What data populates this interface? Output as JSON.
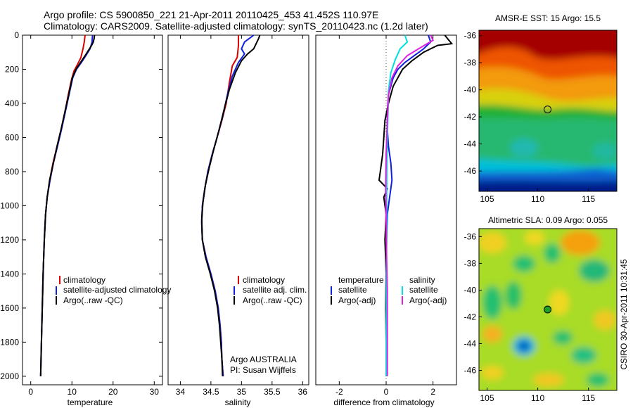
{
  "header": {
    "line1": "Argo profile: CS 5900850_221 21-Apr-2011 20110425_453 41.452S 110.97E",
    "line2": "Climatology: CARS2009. Satellite-adjusted climatology: synTS_20110423.nc (1.2d later)"
  },
  "colors": {
    "climatology": "#dd0000",
    "satellite": "#1020e0",
    "argo": "#000000",
    "sal_satellite": "#00e0e0",
    "sal_argo": "#e020e0",
    "zero_line": "#444444"
  },
  "depth_axis": {
    "ylim": [
      2050,
      0
    ],
    "ticks": [
      0,
      200,
      400,
      600,
      800,
      1000,
      1200,
      1400,
      1600,
      1800,
      2000
    ]
  },
  "chart_data": [
    {
      "id": "temperature",
      "type": "line",
      "xlabel": "temperature",
      "xlim": [
        -2,
        32
      ],
      "xticks": [
        0,
        10,
        20,
        30
      ],
      "legend_labels": [
        "climatology",
        "satellite-adjusted climatology",
        "Argo(..raw -QC)"
      ],
      "series": [
        {
          "name": "climatology",
          "color_key": "climatology",
          "points": [
            [
              13.2,
              0
            ],
            [
              13.0,
              40
            ],
            [
              12.7,
              80
            ],
            [
              12.2,
              130
            ],
            [
              11.4,
              170
            ],
            [
              10.5,
              210
            ],
            [
              9.9,
              260
            ],
            [
              9.1,
              350
            ],
            [
              8.3,
              450
            ],
            [
              7.4,
              550
            ],
            [
              6.4,
              650
            ],
            [
              5.4,
              750
            ],
            [
              4.6,
              850
            ],
            [
              4.0,
              950
            ],
            [
              3.6,
              1050
            ],
            [
              3.3,
              1200
            ],
            [
              3.0,
              1400
            ],
            [
              2.8,
              1600
            ],
            [
              2.6,
              1800
            ],
            [
              2.4,
              2000
            ]
          ]
        },
        {
          "name": "satellite-adjusted climatology",
          "color_key": "satellite",
          "points": [
            [
              15.0,
              0
            ],
            [
              14.9,
              40
            ],
            [
              14.4,
              80
            ],
            [
              13.4,
              120
            ],
            [
              12.3,
              160
            ],
            [
              11.1,
              200
            ],
            [
              10.2,
              250
            ],
            [
              9.3,
              350
            ],
            [
              8.4,
              450
            ],
            [
              7.5,
              550
            ],
            [
              6.5,
              650
            ],
            [
              5.5,
              750
            ],
            [
              4.7,
              850
            ],
            [
              4.0,
              950
            ],
            [
              3.6,
              1050
            ],
            [
              3.3,
              1200
            ],
            [
              3.0,
              1400
            ],
            [
              2.8,
              1600
            ],
            [
              2.6,
              1800
            ],
            [
              2.4,
              2000
            ]
          ]
        },
        {
          "name": "Argo(..raw -QC)",
          "color_key": "argo",
          "points": [
            [
              15.5,
              0
            ],
            [
              15.4,
              20
            ],
            [
              15.2,
              40
            ],
            [
              14.8,
              60
            ],
            [
              14.0,
              90
            ],
            [
              13.2,
              120
            ],
            [
              12.1,
              160
            ],
            [
              11.0,
              200
            ],
            [
              10.1,
              250
            ],
            [
              9.2,
              350
            ],
            [
              8.3,
              450
            ],
            [
              7.4,
              550
            ],
            [
              6.4,
              650
            ],
            [
              5.5,
              750
            ],
            [
              4.6,
              850
            ],
            [
              4.0,
              950
            ],
            [
              3.6,
              1050
            ],
            [
              3.3,
              1200
            ],
            [
              3.0,
              1400
            ],
            [
              2.8,
              1600
            ],
            [
              2.6,
              1800
            ],
            [
              2.4,
              2000
            ]
          ]
        }
      ]
    },
    {
      "id": "salinity",
      "type": "line",
      "xlabel": "salinity",
      "xlim": [
        33.8,
        36.1
      ],
      "xticks": [
        34,
        34.5,
        35,
        35.5,
        36
      ],
      "legend_labels": [
        "climatology",
        "satellite adj. clim.",
        "Argo(..raw -QC)"
      ],
      "series": [
        {
          "name": "climatology",
          "color_key": "climatology",
          "points": [
            [
              34.95,
              0
            ],
            [
              34.95,
              60
            ],
            [
              34.93,
              130
            ],
            [
              34.85,
              180
            ],
            [
              34.8,
              280
            ],
            [
              34.75,
              400
            ],
            [
              34.68,
              500
            ],
            [
              34.6,
              600
            ],
            [
              34.52,
              700
            ],
            [
              34.45,
              800
            ],
            [
              34.4,
              900
            ],
            [
              34.36,
              1000
            ],
            [
              34.35,
              1100
            ],
            [
              34.36,
              1200
            ],
            [
              34.42,
              1300
            ],
            [
              34.5,
              1400
            ],
            [
              34.57,
              1500
            ],
            [
              34.62,
              1600
            ],
            [
              34.65,
              1700
            ],
            [
              34.67,
              1800
            ],
            [
              34.68,
              1900
            ],
            [
              34.7,
              2000
            ]
          ]
        },
        {
          "name": "satellite adj. clim.",
          "color_key": "satellite",
          "points": [
            [
              35.2,
              0
            ],
            [
              35.05,
              40
            ],
            [
              35.0,
              80
            ],
            [
              35.05,
              110
            ],
            [
              34.95,
              160
            ],
            [
              34.85,
              240
            ],
            [
              34.77,
              350
            ],
            [
              34.69,
              480
            ],
            [
              34.6,
              600
            ],
            [
              34.52,
              700
            ],
            [
              34.45,
              800
            ],
            [
              34.4,
              900
            ],
            [
              34.36,
              1000
            ],
            [
              34.35,
              1100
            ],
            [
              34.36,
              1200
            ],
            [
              34.42,
              1300
            ],
            [
              34.5,
              1400
            ],
            [
              34.57,
              1500
            ],
            [
              34.62,
              1600
            ],
            [
              34.65,
              1700
            ],
            [
              34.67,
              1800
            ],
            [
              34.68,
              1900
            ],
            [
              34.7,
              2000
            ]
          ]
        },
        {
          "name": "Argo(..raw -QC)",
          "color_key": "argo",
          "points": [
            [
              35.3,
              0
            ],
            [
              35.28,
              20
            ],
            [
              35.24,
              50
            ],
            [
              35.2,
              80
            ],
            [
              35.1,
              110
            ],
            [
              35.0,
              150
            ],
            [
              34.9,
              220
            ],
            [
              34.8,
              320
            ],
            [
              34.72,
              430
            ],
            [
              34.63,
              560
            ],
            [
              34.54,
              680
            ],
            [
              34.47,
              780
            ],
            [
              34.41,
              880
            ],
            [
              34.37,
              980
            ],
            [
              34.35,
              1080
            ],
            [
              34.36,
              1200
            ],
            [
              34.41,
              1300
            ],
            [
              34.49,
              1400
            ],
            [
              34.56,
              1500
            ],
            [
              34.61,
              1600
            ],
            [
              34.64,
              1700
            ],
            [
              34.66,
              1800
            ],
            [
              34.68,
              1900
            ],
            [
              34.69,
              2000
            ]
          ]
        }
      ],
      "annotation": [
        "Argo AUSTRALIA",
        "PI: Susan Wijffels"
      ]
    },
    {
      "id": "difference",
      "type": "line",
      "xlabel": "difference from climatology",
      "xlim": [
        -3,
        3
      ],
      "xticks": [
        -2,
        0,
        2
      ],
      "legend_groups": [
        {
          "title": "temperature",
          "labels": [
            "satellite",
            "Argo(-adj)"
          ]
        },
        {
          "title": "salinity",
          "labels": [
            "satellite",
            "Argo(-adj)"
          ]
        }
      ],
      "series": [
        {
          "name": "temperature satellite",
          "color_key": "satellite",
          "points": [
            [
              1.8,
              0
            ],
            [
              1.9,
              40
            ],
            [
              1.6,
              80
            ],
            [
              1.2,
              120
            ],
            [
              0.8,
              160
            ],
            [
              0.5,
              200
            ],
            [
              0.3,
              250
            ],
            [
              0.1,
              350
            ],
            [
              0.05,
              450
            ],
            [
              0.05,
              550
            ],
            [
              0.1,
              650
            ],
            [
              0.2,
              750
            ],
            [
              0.25,
              850
            ],
            [
              0.15,
              950
            ],
            [
              0.05,
              1050
            ],
            [
              0.02,
              1200
            ],
            [
              0.0,
              1400
            ],
            [
              0.0,
              1600
            ],
            [
              0.0,
              1800
            ],
            [
              0.0,
              2000
            ]
          ]
        },
        {
          "name": "temperature Argo(-adj)",
          "color_key": "argo",
          "points": [
            [
              2.5,
              0
            ],
            [
              2.8,
              50
            ],
            [
              2.2,
              60
            ],
            [
              1.6,
              100
            ],
            [
              1.1,
              150
            ],
            [
              0.7,
              200
            ],
            [
              0.3,
              300
            ],
            [
              0.1,
              400
            ],
            [
              -0.05,
              500
            ],
            [
              -0.1,
              600
            ],
            [
              -0.15,
              700
            ],
            [
              -0.25,
              800
            ],
            [
              -0.3,
              850
            ],
            [
              0.05,
              900
            ],
            [
              -0.1,
              950
            ],
            [
              0.0,
              1050
            ],
            [
              -0.05,
              1200
            ],
            [
              0.0,
              1400
            ],
            [
              -0.02,
              1600
            ],
            [
              0.0,
              1800
            ],
            [
              0.0,
              2000
            ]
          ]
        },
        {
          "name": "salinity satellite",
          "color_key": "sal_satellite",
          "points": [
            [
              0.8,
              0
            ],
            [
              0.9,
              40
            ],
            [
              0.6,
              80
            ],
            [
              0.4,
              140
            ],
            [
              0.2,
              220
            ],
            [
              0.1,
              330
            ],
            [
              0.08,
              450
            ],
            [
              0.05,
              600
            ],
            [
              0.03,
              800
            ],
            [
              0.02,
              1000
            ],
            [
              0.02,
              1200
            ],
            [
              0.01,
              1400
            ],
            [
              0.0,
              1700
            ],
            [
              0.0,
              2000
            ]
          ]
        },
        {
          "name": "salinity Argo(-adj)",
          "color_key": "sal_argo",
          "points": [
            [
              1.9,
              0
            ],
            [
              2.0,
              30
            ],
            [
              1.5,
              70
            ],
            [
              0.9,
              120
            ],
            [
              0.5,
              180
            ],
            [
              0.25,
              250
            ],
            [
              0.1,
              350
            ],
            [
              0.05,
              500
            ],
            [
              0.0,
              700
            ],
            [
              -0.02,
              900
            ],
            [
              0.0,
              1100
            ],
            [
              0.02,
              1300
            ],
            [
              0.05,
              1500
            ],
            [
              0.05,
              1800
            ],
            [
              0.05,
              2000
            ]
          ]
        }
      ]
    },
    {
      "id": "sst_map",
      "type": "heatmap",
      "title": "AMSR-E SST: 15 Argo: 15.5",
      "xticks": [
        105,
        110,
        115
      ],
      "yticks": [
        -36,
        -38,
        -40,
        -42,
        -44,
        -46
      ],
      "xlim": [
        104.2,
        117.8
      ],
      "ylim": [
        -47.5,
        -35.6
      ],
      "profile_location": [
        110.97,
        -41.452
      ]
    },
    {
      "id": "sla_map",
      "type": "heatmap",
      "title": "Altimetric SLA: 0.09 Argo: 0.055",
      "xticks": [
        105,
        110,
        115
      ],
      "yticks": [
        -36,
        -38,
        -40,
        -42,
        -44,
        -46
      ],
      "xlim": [
        104.2,
        117.8
      ],
      "ylim": [
        -47.5,
        -35.4
      ],
      "profile_location": [
        110.97,
        -41.452
      ]
    }
  ],
  "side_label": "CSIRO 30-Apr-2011 10:31:45"
}
